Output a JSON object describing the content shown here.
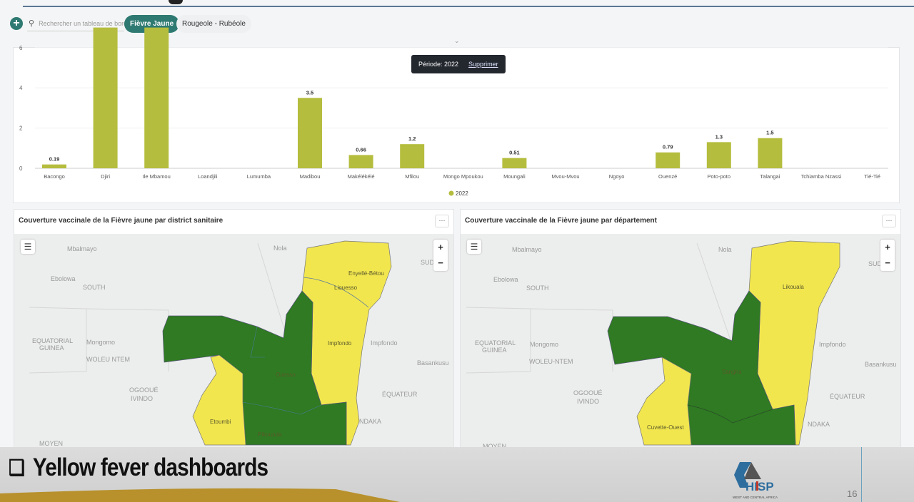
{
  "toolbar": {
    "add_icon": "plus-circle-icon",
    "search_placeholder": "Rechercher un tableau de bord",
    "search_icon": "search-icon",
    "dashboards": [
      {
        "label": "Fièvre Jaune",
        "active": true
      },
      {
        "label": "Rougeole - Rubéole",
        "active": false
      }
    ],
    "accent_color": "#2e7a72"
  },
  "filter_tooltip": {
    "label": "Période: 2022",
    "action": "Supprimer"
  },
  "chart_data": {
    "type": "bar",
    "categories": [
      "Bacongo",
      "Djiri",
      "Ile Mbamou",
      "Loandjili",
      "Lumumba",
      "Madibou",
      "Makélékélé",
      "Mfilou",
      "Mongo Mpoukou",
      "Moungali",
      "Mvou-Mvou",
      "Ngoyo",
      "Ouenzé",
      "Poto-poto",
      "Talangai",
      "Tchiamba Nzassi",
      "Tié-Tié"
    ],
    "series": [
      {
        "name": "2022",
        "color": "#b5bd3e",
        "values": [
          0.19,
          null,
          null,
          null,
          null,
          3.5,
          0.66,
          1.2,
          null,
          0.51,
          null,
          null,
          0.79,
          1.3,
          1.5,
          null,
          null
        ],
        "data_labels": [
          "0.19",
          "",
          "",
          "",
          "",
          "3.5",
          "0.66",
          "1.2",
          "",
          "0.51",
          "",
          "",
          "0.79",
          "1.3",
          "1.5",
          "",
          ""
        ],
        "exceeds_visible_range": [
          "Djiri",
          "Ile Mbamou"
        ]
      }
    ],
    "yticks": [
      "0",
      "2",
      "4",
      "6"
    ],
    "ylim": [
      0,
      6
    ],
    "grid": true,
    "legend": "bottom-center"
  },
  "maps": [
    {
      "title": "Couverture vaccinale de la Fièvre jaune par district sanitaire",
      "menu_label": "···",
      "region_labels": [
        "Enyellé-Bétou",
        "Liouesso",
        "Impfondo",
        "Etoumbi",
        "Ouesso",
        "Pikounda"
      ],
      "background_labels": [
        "Ebolowa",
        "SOUTH",
        "EQUATORIAL",
        "GUINEA",
        "WOLEU NTEM",
        "OGOOUÉ",
        "IVINDO",
        "MOYEN",
        "ÉQUATEUR",
        "SUD-",
        "Mbalmayo",
        "Nola",
        "Mongomo",
        "Impfondo",
        "Basankusu",
        "NDAKA"
      ]
    },
    {
      "title": "Couverture vaccinale de la Fièvre jaune par département",
      "menu_label": "···",
      "region_labels": [
        "Likouala",
        "Sangha",
        "Cuvette-Ouest"
      ],
      "background_labels": [
        "Ebolowa",
        "SOUTH",
        "EQUATORIAL",
        "GUINEA",
        "WOLEU-NTEM",
        "OGOOUÉ",
        "IVINDO",
        "MOYEN",
        "ÉQUATEUR",
        "SUD",
        "Mbalmayo",
        "Nola",
        "Mongomo",
        "Impfondo",
        "Basankusu",
        "NDAKA"
      ]
    }
  ],
  "map_colors": {
    "high": "#2f7a22",
    "low": "#f2e64f",
    "base": "#eceded"
  },
  "map_controls": {
    "zoom_in": "+",
    "zoom_out": "−",
    "legend_icon": "list-icon"
  },
  "slide": {
    "title": "Yellow fever dashboards",
    "bullet": "❑",
    "logo_text": "HISP",
    "logo_subtext": "WEST AND CENTRAL AFRICA",
    "page_number": "16"
  }
}
